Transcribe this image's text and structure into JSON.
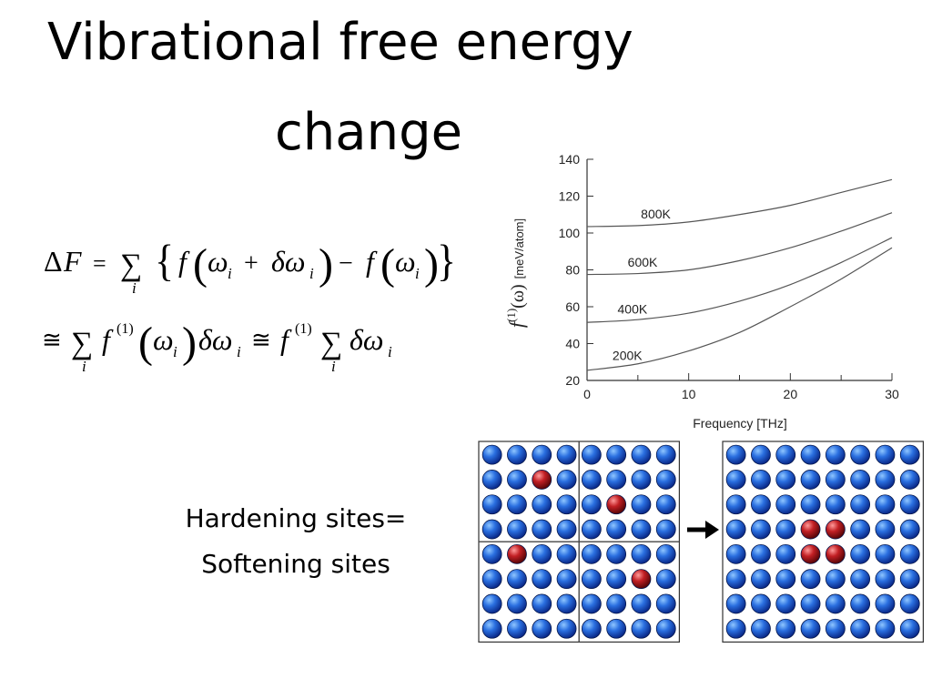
{
  "slide": {
    "title_line1": "Vibrational free energy",
    "title_line2": "change",
    "caption_line1": "Hardening sites=",
    "caption_line2": "Softening sites"
  },
  "equations": {
    "line1": "ΔF = Σ_i { f(ω_i + δω_i) − f(ω_i) }",
    "line2": "≅ Σ_i f^(1)(ω_i) δω_i ≅ f^(1) Σ_i δω_i"
  },
  "chart_data": {
    "type": "line",
    "xlabel": "Frequency [THz]",
    "ylabel": "f(1)(ω) [meV/atom]",
    "xlim": [
      0,
      30
    ],
    "ylim": [
      20,
      140
    ],
    "xticks": [
      0,
      10,
      20,
      30
    ],
    "yticks": [
      20,
      40,
      60,
      80,
      100,
      120,
      140
    ],
    "grid": false,
    "series": [
      {
        "name": "800K",
        "x": [
          0,
          5,
          10,
          15,
          20,
          25,
          30
        ],
        "y": [
          103.5,
          104,
          106,
          110,
          115,
          122,
          129
        ]
      },
      {
        "name": "600K",
        "x": [
          0,
          5,
          10,
          15,
          20,
          25,
          30
        ],
        "y": [
          77.5,
          78,
          80,
          85,
          92,
          101,
          111
        ]
      },
      {
        "name": "400K",
        "x": [
          0,
          5,
          10,
          15,
          20,
          25,
          30
        ],
        "y": [
          51.5,
          53,
          56.5,
          63,
          72,
          84,
          97.5
        ]
      },
      {
        "name": "200K",
        "x": [
          0,
          5,
          10,
          15,
          20,
          25,
          30
        ],
        "y": [
          25.5,
          29,
          36,
          46,
          60,
          75,
          92
        ]
      }
    ]
  },
  "lattice_left": {
    "rows": 8,
    "cols": 8,
    "red_sites": [
      [
        1,
        2
      ],
      [
        2,
        5
      ],
      [
        4,
        1
      ],
      [
        5,
        6
      ]
    ]
  },
  "lattice_right": {
    "rows": 8,
    "cols": 8,
    "red_sites": [
      [
        3,
        3
      ],
      [
        3,
        4
      ],
      [
        4,
        3
      ],
      [
        4,
        4
      ]
    ]
  },
  "colors": {
    "blue_atom": "#1f5fd0",
    "red_atom": "#b3161b",
    "curve": "#555555"
  }
}
